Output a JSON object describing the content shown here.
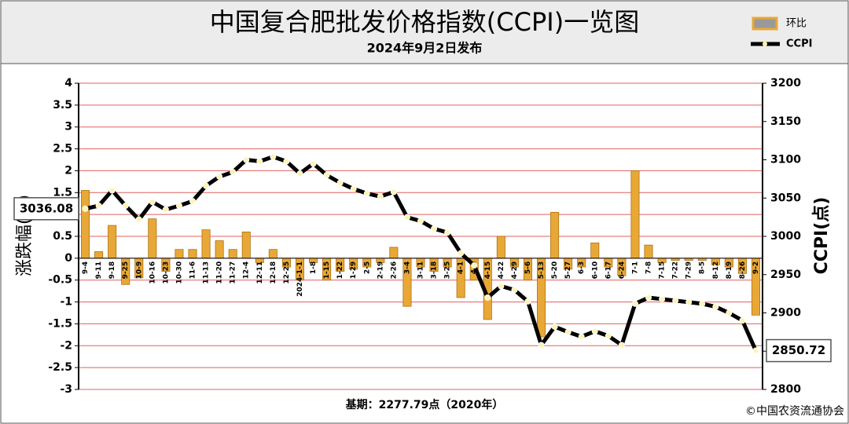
{
  "chart_data": {
    "type": "bar-line",
    "title": "中国复合肥批发价格指数(CCPI)一览图",
    "subtitle": "2024年9月2日发布",
    "y_label": "涨跌幅(%)",
    "y2_label": "CCPI(点)",
    "footnote": "基期：2277.79点（2020年）",
    "source": "©中国农资流通协会",
    "categories": [
      "9-4",
      "9-11",
      "9-18",
      "9-25",
      "10-9",
      "10-16",
      "10-23",
      "10-30",
      "11-6",
      "11-13",
      "11-20",
      "11-27",
      "12-4",
      "12-11",
      "12-18",
      "12-25",
      "2024-1-1",
      "1-8",
      "1-15",
      "1-22",
      "1-29",
      "2-5",
      "2-19",
      "2-26",
      "3-4",
      "3-11",
      "3-18",
      "3-25",
      "4-1",
      "4-8",
      "4-15",
      "4-22",
      "4-29",
      "5-6",
      "5-13",
      "5-20",
      "5-27",
      "6-3",
      "6-10",
      "6-17",
      "6-24",
      "7-1",
      "7-8",
      "7-15",
      "7-22",
      "7-29",
      "8-5",
      "8-12",
      "8-19",
      "8-26",
      "9-2"
    ],
    "series": [
      {
        "name": "环比",
        "type": "bar",
        "color": "#e8a838",
        "values": [
          1.55,
          0.15,
          0.75,
          -0.6,
          -0.45,
          0.9,
          -0.3,
          0.2,
          0.2,
          0.65,
          0.4,
          0.2,
          0.6,
          -0.1,
          0.2,
          -0.2,
          -0.5,
          -0.1,
          -0.5,
          -0.3,
          -0.25,
          -0.2,
          -0.1,
          0.25,
          -1.1,
          -0.2,
          -0.3,
          -0.2,
          -0.9,
          -0.5,
          -1.4,
          0.5,
          -0.2,
          -0.5,
          -1.8,
          1.05,
          -0.25,
          -0.2,
          0.35,
          -0.2,
          -0.4,
          2.0,
          0.3,
          -0.1,
          -0.05,
          -0.05,
          -0.05,
          -0.15,
          -0.2,
          -0.35,
          -1.3
        ]
      },
      {
        "name": "CCPI",
        "type": "line",
        "axis": "y2",
        "color": "#000000",
        "values": [
          3036.08,
          3040,
          3060,
          3040,
          3022,
          3045,
          3035,
          3040,
          3046,
          3066,
          3078,
          3084,
          3100,
          3098,
          3104,
          3098,
          3082,
          3095,
          3080,
          3070,
          3062,
          3056,
          3052,
          3058,
          3025,
          3020,
          3010,
          3005,
          2978,
          2962,
          2920,
          2935,
          2930,
          2915,
          2858,
          2882,
          2875,
          2869,
          2876,
          2870,
          2858,
          2912,
          2920,
          2918,
          2916,
          2914,
          2912,
          2908,
          2900,
          2890,
          2850.72
        ]
      }
    ],
    "ylim": [
      -3,
      4
    ],
    "yticks": [
      -3,
      -2.5,
      -2,
      -1.5,
      -1,
      -0.5,
      0,
      0.5,
      1,
      1.5,
      2,
      2.5,
      3,
      3.5,
      4
    ],
    "y2lim": [
      2800,
      3200
    ],
    "y2ticks": [
      2800,
      2850,
      2900,
      2950,
      3000,
      3050,
      3100,
      3150,
      3200
    ],
    "grid": true
  }
}
